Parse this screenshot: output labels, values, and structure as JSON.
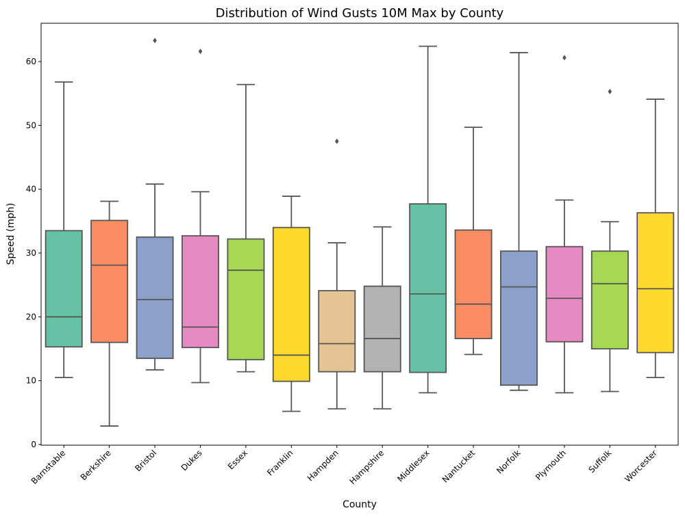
{
  "chart_data": {
    "type": "box",
    "title": "Distribution of Wind Gusts 10M Max by County",
    "xlabel": "County",
    "ylabel": "Speed (mph)",
    "ylim": [
      0,
      66
    ],
    "yticks": [
      0,
      10,
      20,
      30,
      40,
      50,
      60
    ],
    "grid": false,
    "line_color": "#555555",
    "boxes": [
      {
        "category": "Barnstable",
        "color": "#66c2a5",
        "whisker_low": 10.5,
        "q1": 15.3,
        "median": 20.0,
        "q3": 33.5,
        "whisker_high": 56.8,
        "outliers": []
      },
      {
        "category": "Berkshire",
        "color": "#fc8d62",
        "whisker_low": 2.9,
        "q1": 16.0,
        "median": 28.1,
        "q3": 35.1,
        "whisker_high": 38.1,
        "outliers": []
      },
      {
        "category": "Bristol",
        "color": "#8da0cb",
        "whisker_low": 11.7,
        "q1": 13.5,
        "median": 22.7,
        "q3": 32.5,
        "whisker_high": 40.8,
        "outliers": [
          63.3
        ]
      },
      {
        "category": "Dukes",
        "color": "#e78ac3",
        "whisker_low": 9.7,
        "q1": 15.2,
        "median": 18.4,
        "q3": 32.7,
        "whisker_high": 39.6,
        "outliers": [
          61.6
        ]
      },
      {
        "category": "Essex",
        "color": "#a6d854",
        "whisker_low": 11.4,
        "q1": 13.3,
        "median": 27.3,
        "q3": 32.2,
        "whisker_high": 56.4,
        "outliers": []
      },
      {
        "category": "Franklin",
        "color": "#ffd92f",
        "whisker_low": 5.2,
        "q1": 9.9,
        "median": 14.0,
        "q3": 34.0,
        "whisker_high": 38.9,
        "outliers": []
      },
      {
        "category": "Hampden",
        "color": "#e5c494",
        "whisker_low": 5.6,
        "q1": 11.4,
        "median": 15.8,
        "q3": 24.1,
        "whisker_high": 31.6,
        "outliers": [
          47.5
        ]
      },
      {
        "category": "Hampshire",
        "color": "#b3b3b3",
        "whisker_low": 5.6,
        "q1": 11.4,
        "median": 16.6,
        "q3": 24.8,
        "whisker_high": 34.1,
        "outliers": []
      },
      {
        "category": "Middlesex",
        "color": "#66c2a5",
        "whisker_low": 8.1,
        "q1": 11.3,
        "median": 23.6,
        "q3": 37.7,
        "whisker_high": 62.4,
        "outliers": []
      },
      {
        "category": "Nantucket",
        "color": "#fc8d62",
        "whisker_low": 14.1,
        "q1": 16.6,
        "median": 22.0,
        "q3": 33.6,
        "whisker_high": 49.7,
        "outliers": []
      },
      {
        "category": "Norfolk",
        "color": "#8da0cb",
        "whisker_low": 8.5,
        "q1": 9.3,
        "median": 24.7,
        "q3": 30.3,
        "whisker_high": 61.4,
        "outliers": []
      },
      {
        "category": "Plymouth",
        "color": "#e78ac3",
        "whisker_low": 8.1,
        "q1": 16.1,
        "median": 22.9,
        "q3": 31.0,
        "whisker_high": 38.3,
        "outliers": [
          60.6
        ]
      },
      {
        "category": "Suffolk",
        "color": "#a6d854",
        "whisker_low": 8.3,
        "q1": 15.0,
        "median": 25.2,
        "q3": 30.3,
        "whisker_high": 34.9,
        "outliers": [
          55.3
        ]
      },
      {
        "category": "Worcester",
        "color": "#ffd92f",
        "whisker_low": 10.5,
        "q1": 14.4,
        "median": 24.4,
        "q3": 36.3,
        "whisker_high": 54.1,
        "outliers": []
      }
    ]
  }
}
